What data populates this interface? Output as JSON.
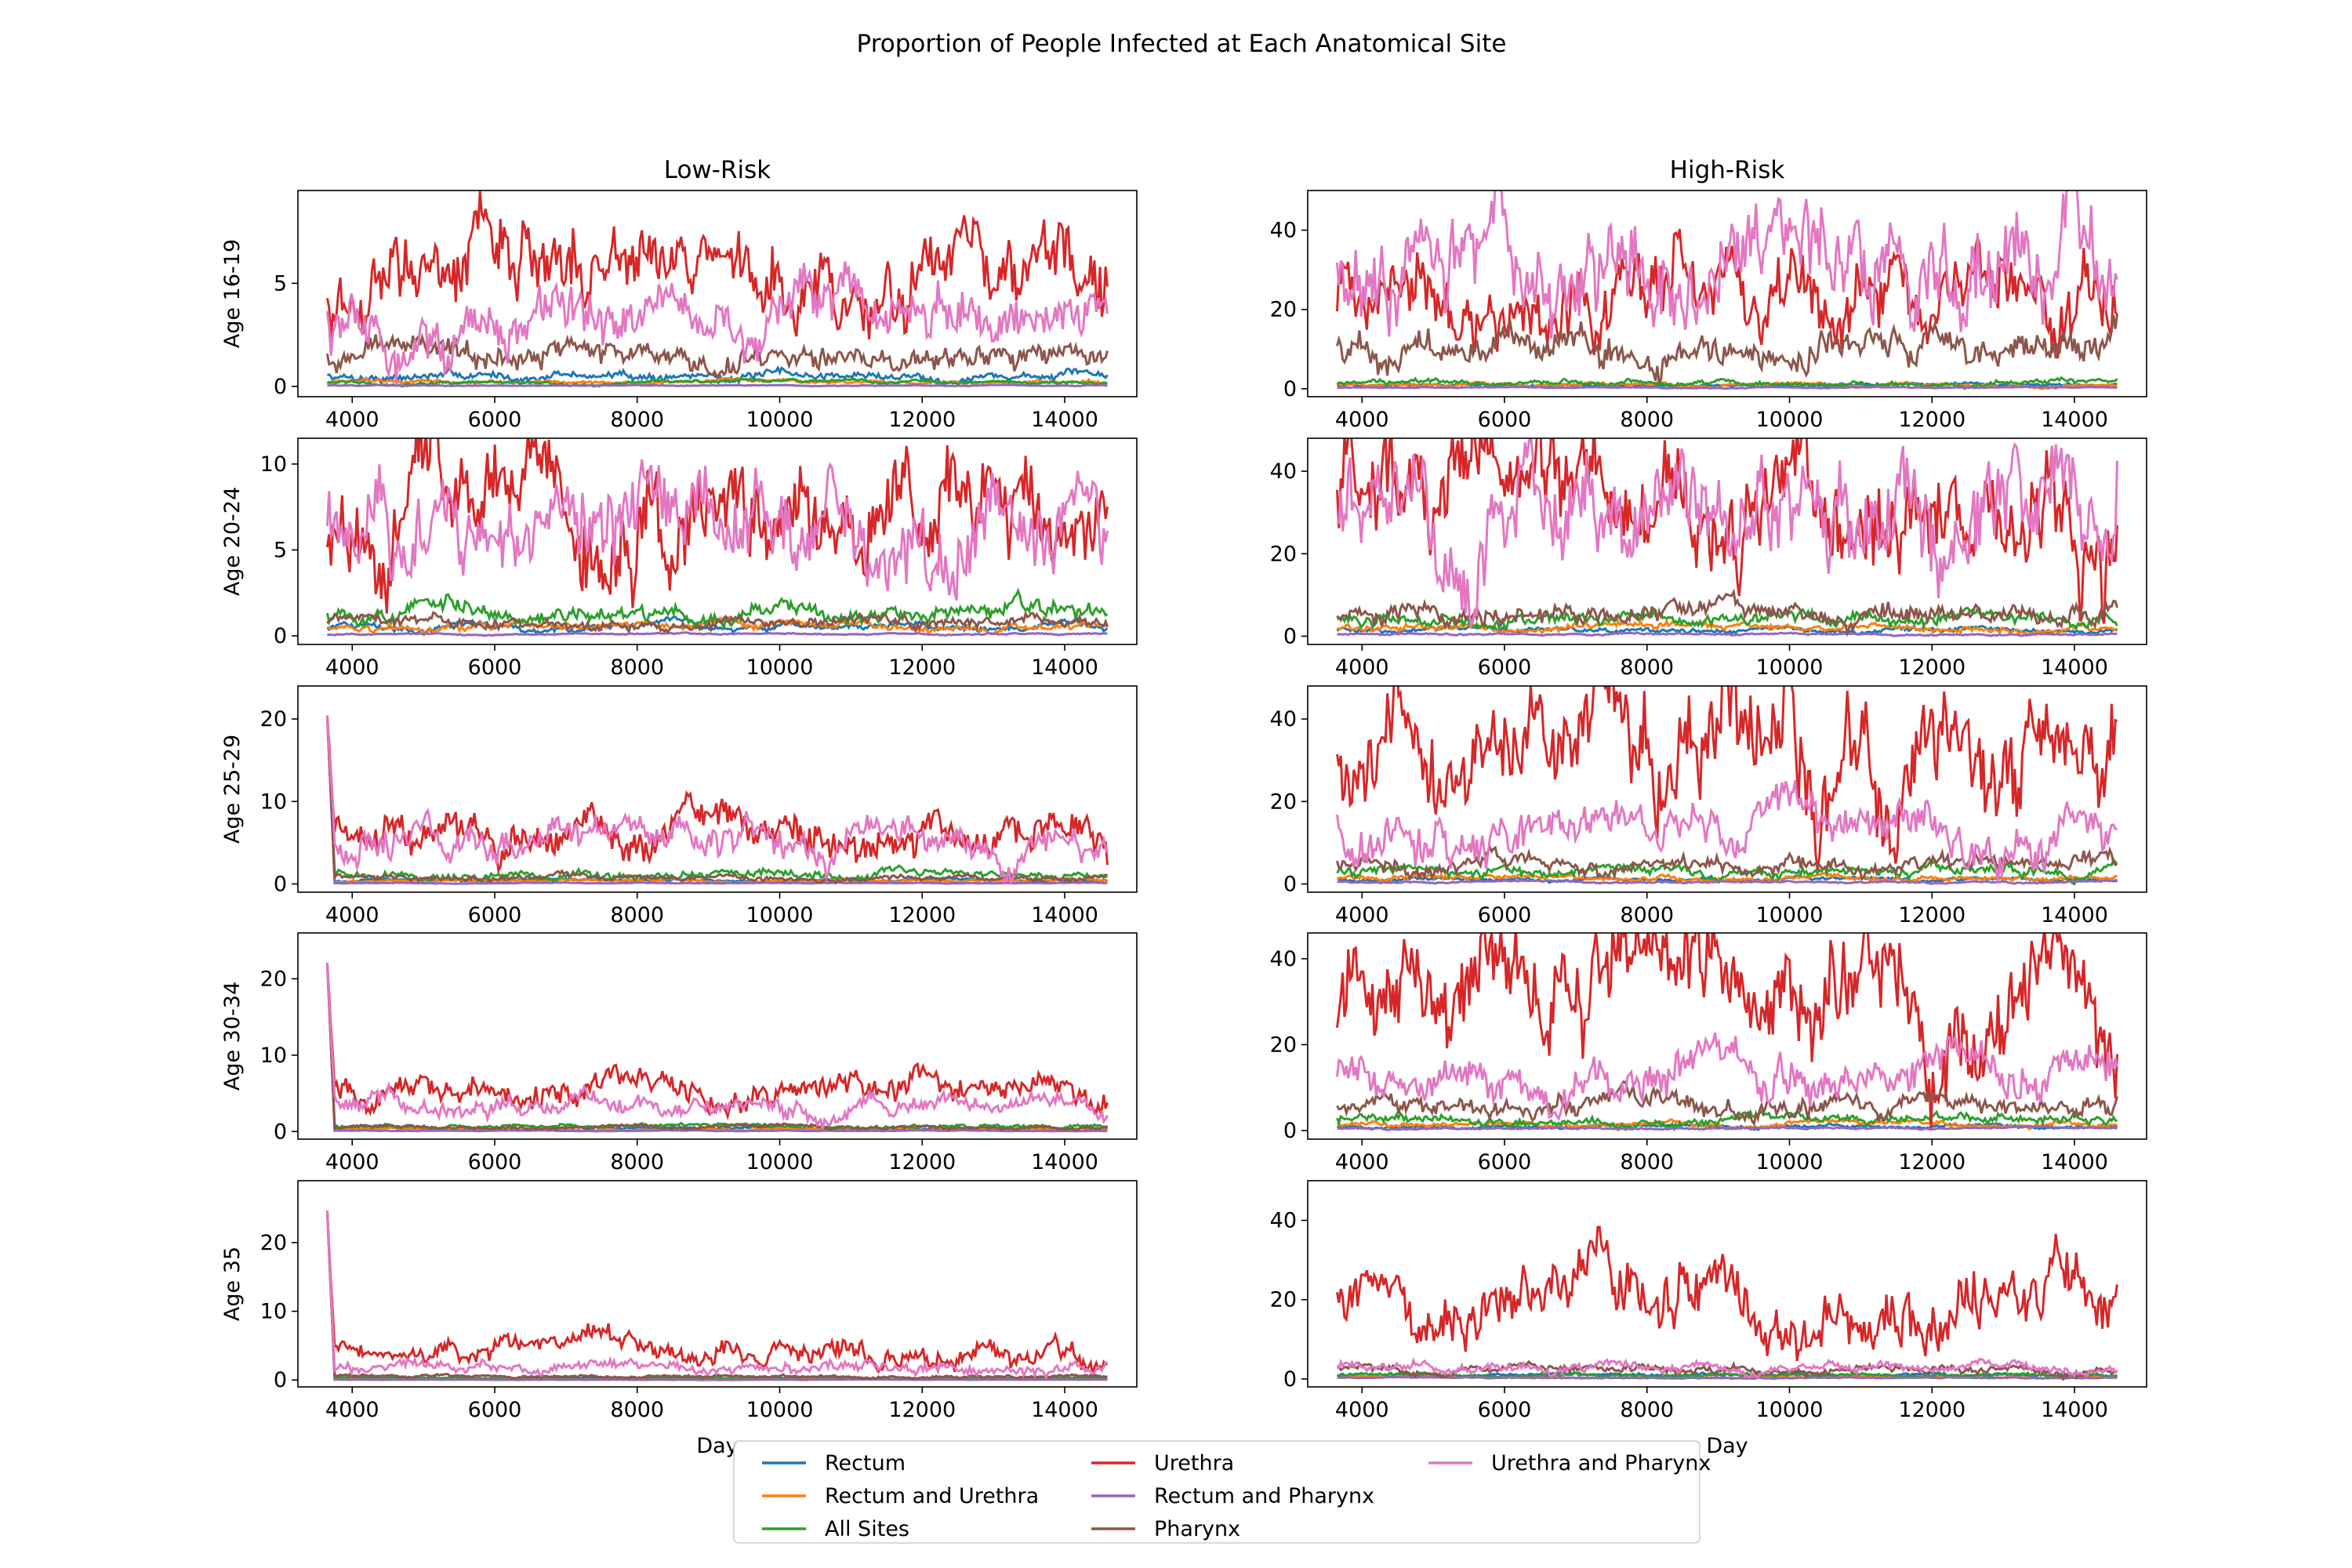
{
  "chart_data": {
    "type": "line",
    "title": "Proportion of People Infected at Each Anatomical Site",
    "columns": [
      "Low-Risk",
      "High-Risk"
    ],
    "rows": [
      "Age 16-19",
      "Age 20-24",
      "Age 25-29",
      "Age 30-34",
      "Age 35"
    ],
    "xlabel": "Day",
    "x_range": [
      3650,
      14600
    ],
    "x_ticks": [
      4000,
      6000,
      8000,
      10000,
      12000,
      14000
    ],
    "legend_location": "bottom-center",
    "grid": false,
    "series": [
      {
        "name": "Rectum",
        "color": "#1f77b4"
      },
      {
        "name": "Rectum and Urethra",
        "color": "#ff7f0e"
      },
      {
        "name": "All Sites",
        "color": "#2ca02c"
      },
      {
        "name": "Urethra",
        "color": "#d62728"
      },
      {
        "name": "Rectum and Pharynx",
        "color": "#9467bd"
      },
      {
        "name": "Pharynx",
        "color": "#8c564b"
      },
      {
        "name": "Urethra and Pharynx",
        "color": "#e377c2"
      }
    ],
    "panels": [
      {
        "row": "Age 16-19",
        "column": "Low-Risk",
        "ylim": [
          -0.5,
          9.5
        ],
        "yticks": [
          0,
          5
        ],
        "title": "Low-Risk",
        "levels": {
          "Rectum": 0.5,
          "Rectum and Urethra": 0.2,
          "All Sites": 0.2,
          "Urethra": 4.8,
          "Rectum and Pharynx": 0.05,
          "Pharynx": 1.5,
          "Urethra and Pharynx": 3.2
        }
      },
      {
        "row": "Age 16-19",
        "column": "High-Risk",
        "ylim": [
          -2,
          50
        ],
        "yticks": [
          0,
          20,
          40
        ],
        "title": "High-Risk",
        "levels": {
          "Rectum": 1,
          "Rectum and Urethra": 1,
          "All Sites": 1.5,
          "Urethra": 24,
          "Rectum and Pharynx": 0.3,
          "Pharynx": 11,
          "Urethra and Pharynx": 30
        }
      },
      {
        "row": "Age 20-24",
        "column": "Low-Risk",
        "ylim": [
          -0.5,
          11.5
        ],
        "yticks": [
          0,
          5,
          10
        ],
        "levels": {
          "Rectum": 0.5,
          "Rectum and Urethra": 0.5,
          "All Sites": 1.2,
          "Urethra": 7,
          "Rectum and Pharynx": 0.1,
          "Pharynx": 0.8,
          "Urethra and Pharynx": 6.5
        }
      },
      {
        "row": "Age 20-24",
        "column": "High-Risk",
        "ylim": [
          -2,
          48
        ],
        "yticks": [
          0,
          20,
          40
        ],
        "levels": {
          "Rectum": 1.5,
          "Rectum and Urethra": 2,
          "All Sites": 4,
          "Urethra": 32,
          "Rectum and Pharynx": 0.5,
          "Pharynx": 6,
          "Urethra and Pharynx": 30
        }
      },
      {
        "row": "Age 25-29",
        "column": "Low-Risk",
        "ylim": [
          -1,
          24
        ],
        "yticks": [
          0,
          10,
          20
        ],
        "levels": {
          "Rectum": 0.4,
          "Rectum and Urethra": 0.4,
          "All Sites": 1.2,
          "Urethra": 6,
          "Rectum and Pharynx": 0.1,
          "Pharynx": 0.8,
          "Urethra and Pharynx": 5
        }
      },
      {
        "row": "Age 25-29",
        "column": "High-Risk",
        "ylim": [
          -2,
          48
        ],
        "yticks": [
          0,
          20,
          40
        ],
        "levels": {
          "Rectum": 1,
          "Rectum and Urethra": 1.5,
          "All Sites": 3,
          "Urethra": 33,
          "Rectum and Pharynx": 0.5,
          "Pharynx": 5,
          "Urethra and Pharynx": 14
        }
      },
      {
        "row": "Age 30-34",
        "column": "Low-Risk",
        "ylim": [
          -1,
          26
        ],
        "yticks": [
          0,
          10,
          20
        ],
        "levels": {
          "Rectum": 0.4,
          "Rectum and Urethra": 0.3,
          "All Sites": 0.6,
          "Urethra": 4.5,
          "Rectum and Pharynx": 0.1,
          "Pharynx": 0.6,
          "Urethra and Pharynx": 3
        }
      },
      {
        "row": "Age 30-34",
        "column": "High-Risk",
        "ylim": [
          -2,
          46
        ],
        "yticks": [
          0,
          20,
          40
        ],
        "levels": {
          "Rectum": 1,
          "Rectum and Urethra": 1.5,
          "All Sites": 2.5,
          "Urethra": 30,
          "Rectum and Pharynx": 0.5,
          "Pharynx": 6,
          "Urethra and Pharynx": 12
        }
      },
      {
        "row": "Age 35",
        "column": "Low-Risk",
        "ylim": [
          -1,
          29
        ],
        "yticks": [
          0,
          10,
          20
        ],
        "xlabel": "Day",
        "levels": {
          "Rectum": 0.2,
          "Rectum and Urethra": 0.1,
          "All Sites": 0.3,
          "Urethra": 4,
          "Rectum and Pharynx": 0.05,
          "Pharynx": 0.5,
          "Urethra and Pharynx": 2
        }
      },
      {
        "row": "Age 35",
        "column": "High-Risk",
        "ylim": [
          -2,
          50
        ],
        "yticks": [
          0,
          20,
          40
        ],
        "xlabel": "Day",
        "levels": {
          "Rectum": 1,
          "Rectum and Urethra": 0.5,
          "All Sites": 1,
          "Urethra": 20,
          "Rectum and Pharynx": 0.3,
          "Pharynx": 2.5,
          "Urethra and Pharynx": 3
        }
      }
    ]
  }
}
